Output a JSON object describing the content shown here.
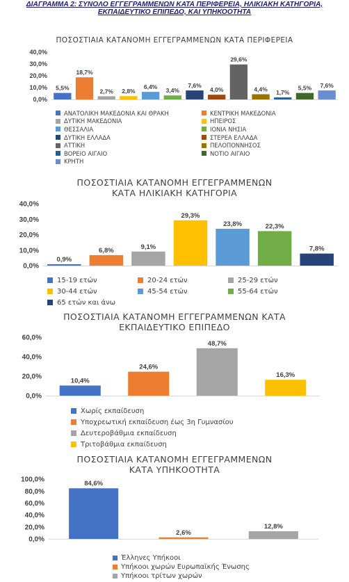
{
  "page_title": {
    "line1": "ΔΙΑΓΡΑΜΜΑ 2: ΣΥΝΟΛΟ ΕΓΓΕΓΡΑΜΜΕΝΩΝ ΚΑΤΑ ΠΕΡΙΦΕΡΕΙΑ, ΗΛΙΚΙΑΚΗ ΚΑΤΗΓΟΡΙΑ,",
    "line2": "ΕΚΠΑΙΔΕΥΤΙΚΟ ΕΠΙΠΕΔΟ, ΚΑΙ ΥΠΗΚΟΟΤΗΤΑ"
  },
  "chart_data": [
    {
      "type": "bar",
      "title": "ΠΟΣΟΣΤΙΑΙΑ ΚΑΤΑΝΟΜΗ ΕΓΓΕΓΡΑΜΜΕΝΩΝ ΚΑΤΑ ΠΕΡΙΦΕΡΕΙΑ",
      "title_lines": [
        "ΠΟΣΟΣΤΙΑΙΑ ΚΑΤΑΝΟΜΗ ΕΓΓΕΓΡΑΜΜΕΝΩΝ ΚΑΤΑ ΠΕΡΙΦΕΡΕΙΑ"
      ],
      "categories": [
        "ΑΝΑΤΟΛΙΚΗ ΜΑΚΕΔΟΝΙΑ ΚΑΙ ΘΡΑΚΗ",
        "ΚΕΝΤΡΙΚΗ ΜΑΚΕΔΟΝΙΑ",
        "ΔΥΤΙΚΗ ΜΑΚΕΔΟΝΙΑ",
        "ΗΠΕΙΡΟΣ",
        "ΘΕΣΣΑΛΙΑ",
        "ΙΟΝΙΑ ΝΗΣΙΑ",
        "ΔΥΤΙΚΗ ΕΛΛΑΔΑ",
        "ΣΤΕΡΕΑ ΕΛΛΑΔΑ",
        "ΑΤΤΙΚΗ",
        "ΠΕΛΟΠΟΝΝΗΣΟΣ",
        "ΒΟΡΕΙΟ ΑΙΓΑΙΟ",
        "ΝΟΤΙΟ ΑΙΓΑΙΟ",
        "ΚΡΗΤΗ"
      ],
      "values": [
        5.5,
        18.7,
        2.7,
        2.8,
        6.4,
        3.4,
        7.6,
        4.0,
        29.6,
        4.4,
        1.7,
        5.5,
        7.6
      ],
      "value_labels": [
        "5,5%",
        "18,7%",
        "2,7%",
        "2,8%",
        "6,4%",
        "3,4%",
        "7,6%",
        "4,0%",
        "29,6%",
        "4,4%",
        "1,7%",
        "5,5%",
        "7,6%"
      ],
      "colors": [
        "#4472C4",
        "#ED7D31",
        "#A5A5A5",
        "#FFC000",
        "#5B9BD5",
        "#70AD47",
        "#264478",
        "#9E480E",
        "#636363",
        "#997300",
        "#255E91",
        "#43682B",
        "#698ED0"
      ],
      "ylim": [
        0,
        40
      ],
      "yticks": [
        0,
        10,
        20,
        30,
        40
      ],
      "ytick_labels": [
        "0,0%",
        "10,0%",
        "20,0%",
        "30,0%",
        "40,0%"
      ],
      "legend_position": "bottom",
      "grid": false
    },
    {
      "type": "bar",
      "title": "ΠΟΣΟΣΤΙΑΙΑ ΚΑΤΑΝΟΜΗ ΕΓΓΕΓΡΑΜΜΕΝΩΝ ΚΑΤΑ ΗΛΙΚΙΑΚΗ ΚΑΤΗΓΟΡΙΑ",
      "title_lines": [
        "ΠΟΣΟΣΤΙΑΙΑ ΚΑΤΑΝΟΜΗ ΕΓΓΕΓΡΑΜΜΕΝΩΝ",
        "ΚΑΤΑ ΗΛΙΚΙΑΚΗ ΚΑΤΗΓΟΡΙΑ"
      ],
      "categories": [
        "15-19 ετών",
        "20-24 ετών",
        "25-29 ετών",
        "30-44 ετών",
        "45-54 ετών",
        "55-64 ετών",
        "65 ετών και άνω"
      ],
      "values": [
        0.9,
        6.8,
        9.1,
        29.3,
        23.8,
        22.3,
        7.8
      ],
      "value_labels": [
        "0,9%",
        "6,8%",
        "9,1%",
        "29,3%",
        "23,8%",
        "22,3%",
        "7,8%"
      ],
      "colors": [
        "#4472C4",
        "#ED7D31",
        "#A5A5A5",
        "#FFC000",
        "#5B9BD5",
        "#70AD47",
        "#264478"
      ],
      "ylim": [
        0,
        40
      ],
      "yticks": [
        0,
        10,
        20,
        30,
        40
      ],
      "ytick_labels": [
        "0,0%",
        "10,0%",
        "20,0%",
        "30,0%",
        "40,0%"
      ],
      "legend_position": "bottom",
      "grid": false
    },
    {
      "type": "bar",
      "title": "ΠΟΣΟΣΤΙΑΙΑ ΚΑΤΑΝΟΜΗ ΕΓΓΕΓΡΑΜΜΕΝΩΝ ΚΑΤΑ ΕΚΠΑΙΔΕΥΤΙΚΟ ΕΠΙΠΕΔΟ",
      "title_lines": [
        "ΠΟΣΟΣΤΙΑΙΑ ΚΑΤΑΝΟΜΗ ΕΓΓΕΓΡΑΜΜΕΝΩΝ ΚΑΤΑ",
        "ΕΚΠΑΙΔΕΥΤΙΚΟ ΕΠΙΠΕΔΟ"
      ],
      "categories": [
        "Χωρίς εκπαίδευση",
        "Υποχρεωτική εκπαίδευση έως 3η Γυμνασίου",
        "Δευτεροβάθμια εκπαίδευση",
        "Τριτοβάθμια εκπαίδευση"
      ],
      "values": [
        10.4,
        24.6,
        48.7,
        16.3
      ],
      "value_labels": [
        "10,4%",
        "24,6%",
        "48,7%",
        "16,3%"
      ],
      "colors": [
        "#4472C4",
        "#ED7D31",
        "#A5A5A5",
        "#FFC000"
      ],
      "ylim": [
        0,
        60
      ],
      "yticks": [
        0,
        20,
        40,
        60
      ],
      "ytick_labels": [
        "0,0%",
        "20,0%",
        "40,0%",
        "60,0%"
      ],
      "legend_position": "bottom",
      "grid": false
    },
    {
      "type": "bar",
      "title": "ΠΟΣΟΣΤΙΑΙΑ ΚΑΤΑΝΟΜΗ ΕΓΓΕΓΡΑΜΜΕΝΩΝ ΚΑΤΑ ΥΠΗΚΟΟΤΗΤΑ",
      "title_lines": [
        "ΠΟΣΟΣΤΙΑΙΑ ΚΑΤΑΝΟΜΗ  ΕΓΓΕΓΡΑΜΜΕΝΩΝ",
        "ΚΑΤΑ ΥΠΗΚΟΟΤΗΤΑ"
      ],
      "categories": [
        "Έλληνες Υπήκοοι",
        "Υπήκοοι χωρών Ευρωπαϊκής Ένωσης",
        "Υπήκοοι τρίτων χωρών"
      ],
      "values": [
        84.6,
        2.6,
        12.8
      ],
      "value_labels": [
        "84,6%",
        "2,6%",
        "12,8%"
      ],
      "colors": [
        "#4472C4",
        "#ED7D31",
        "#A5A5A5"
      ],
      "ylim": [
        0,
        100
      ],
      "yticks": [
        0,
        20,
        40,
        60,
        80,
        100
      ],
      "ytick_labels": [
        "0,0%",
        "20,0%",
        "40,0%",
        "60,0%",
        "80,0%",
        "100,0%"
      ],
      "legend_position": "bottom",
      "grid": false
    }
  ]
}
